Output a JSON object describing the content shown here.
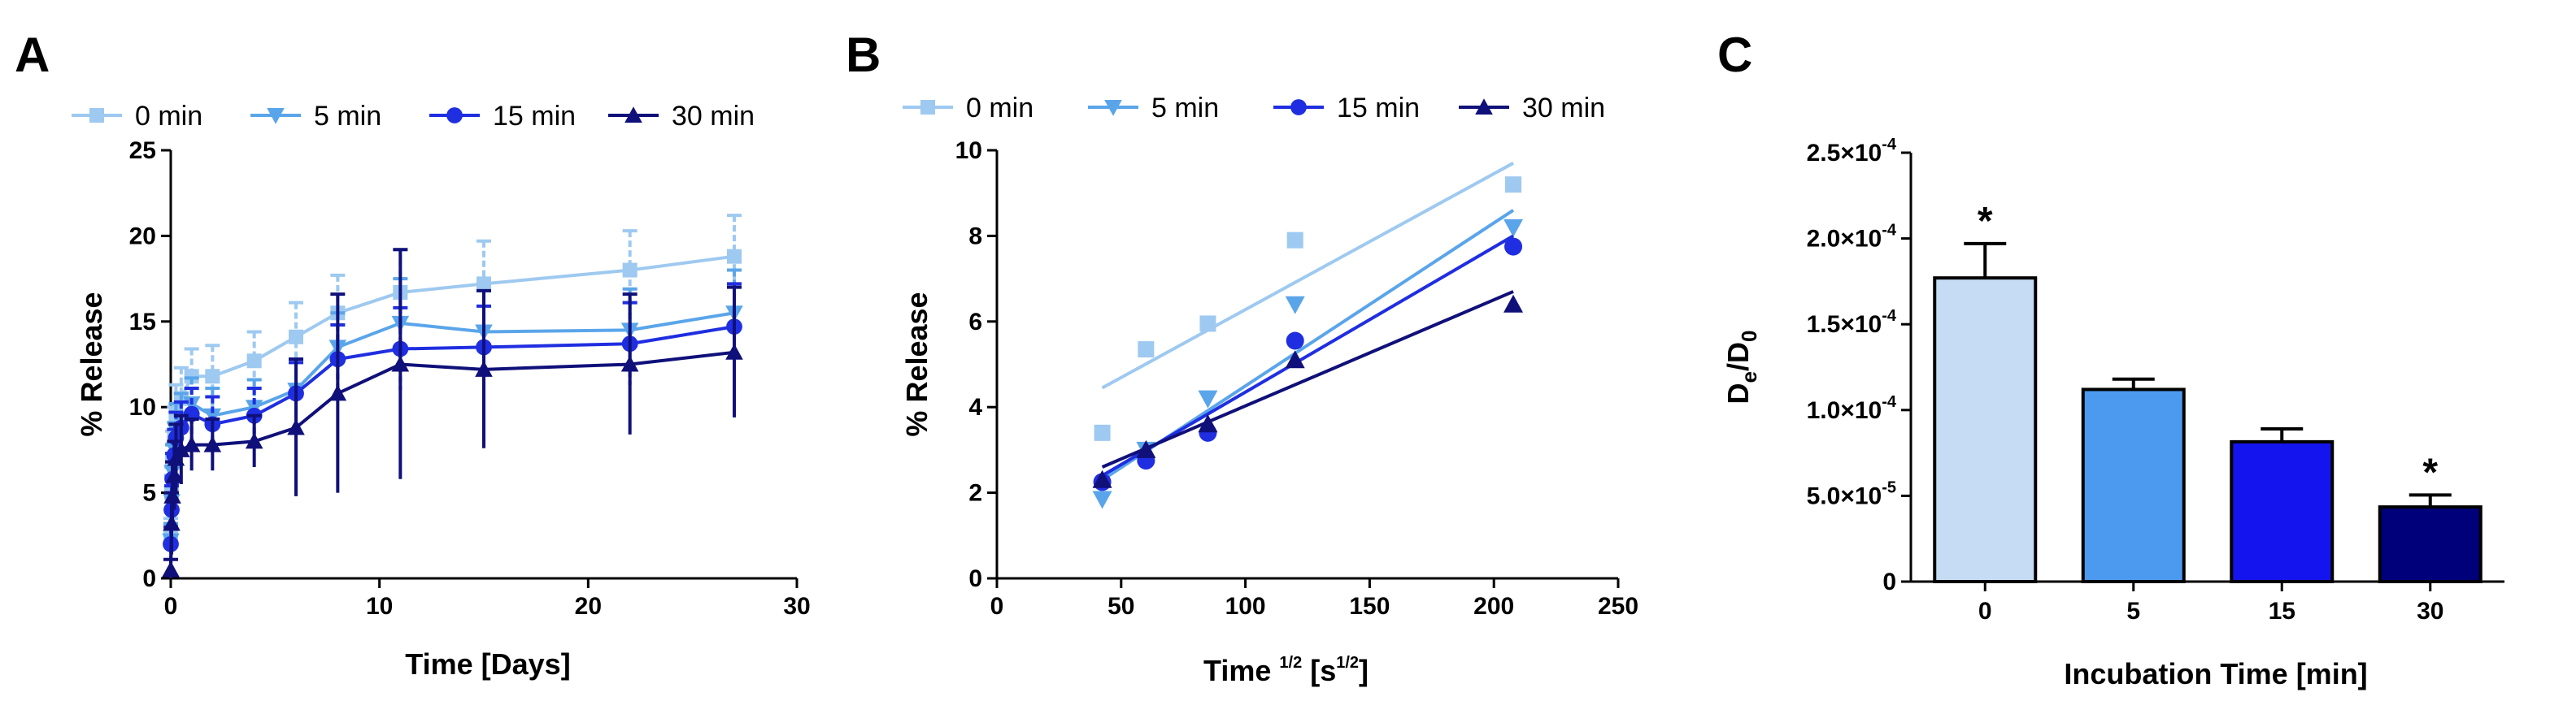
{
  "chart_data": [
    {
      "panel": "A",
      "type": "line",
      "xlabel": "Time [Days]",
      "ylabel": "% Release",
      "xlim": [
        0,
        30
      ],
      "ylim": [
        0,
        25
      ],
      "xticks": [
        0,
        10,
        20,
        30
      ],
      "yticks": [
        0,
        5,
        10,
        15,
        20,
        25
      ],
      "legend": "top",
      "x": [
        0,
        0.04,
        0.08,
        0.17,
        0.25,
        0.5,
        1,
        2,
        4,
        6,
        8,
        11,
        15,
        22,
        27
      ],
      "series": [
        {
          "name": "0 min",
          "color": "#9ec9f0",
          "marker": "square",
          "values": [
            2.5,
            5.0,
            6.8,
            8.2,
            9.5,
            10.5,
            11.8,
            11.8,
            12.7,
            14.1,
            15.5,
            16.7,
            17.2,
            18.0,
            18.8
          ],
          "err": [
            1.0,
            1.5,
            1.8,
            1.8,
            1.8,
            1.8,
            1.6,
            1.8,
            1.7,
            2.0,
            2.2,
            2.5,
            2.5,
            2.3,
            2.4
          ]
        },
        {
          "name": "5 min",
          "color": "#5aa5ea",
          "marker": "triangle-down",
          "values": [
            2.2,
            4.5,
            6.2,
            7.5,
            8.6,
            9.3,
            10.2,
            9.5,
            10.0,
            11.0,
            13.5,
            14.9,
            14.4,
            14.5,
            15.5
          ],
          "err": [
            1.0,
            1.5,
            1.6,
            1.6,
            1.6,
            1.5,
            1.5,
            1.6,
            1.6,
            1.8,
            2.0,
            2.6,
            2.4,
            2.4,
            2.5
          ]
        },
        {
          "name": "15 min",
          "color": "#1f2ee0",
          "marker": "circle",
          "values": [
            2.0,
            4.0,
            5.8,
            7.2,
            8.2,
            8.8,
            9.6,
            9.0,
            9.5,
            10.8,
            12.8,
            13.4,
            13.5,
            13.7,
            14.7
          ],
          "err": [
            1.0,
            1.4,
            1.5,
            1.5,
            1.5,
            1.5,
            1.5,
            1.6,
            1.6,
            1.8,
            2.0,
            2.4,
            2.4,
            2.4,
            2.5
          ]
        },
        {
          "name": "30 min",
          "color": "#10107a",
          "marker": "triangle-up",
          "values": [
            0.5,
            3.2,
            4.8,
            6.0,
            7.0,
            7.5,
            7.8,
            7.8,
            8.0,
            8.8,
            10.8,
            12.5,
            12.2,
            12.5,
            13.2
          ],
          "err": [
            0.6,
            1.8,
            2.0,
            2.0,
            2.0,
            2.0,
            1.5,
            1.5,
            1.5,
            4.0,
            5.8,
            6.7,
            4.6,
            4.1,
            3.8
          ]
        }
      ]
    },
    {
      "panel": "B",
      "type": "scatter",
      "xlabel": "Time",
      "xlabel_sup": "1/2",
      "xlabel_unit": "[s",
      "xlabel_unit_sup": "1/2",
      "xlabel_close": "]",
      "ylabel": "% Release",
      "xlim": [
        0,
        250
      ],
      "ylim": [
        0,
        10
      ],
      "xticks": [
        0,
        50,
        100,
        150,
        200,
        250
      ],
      "yticks": [
        0,
        2,
        4,
        6,
        8,
        10
      ],
      "legend": "top",
      "x": [
        42.4,
        60,
        84.9,
        120,
        207.8
      ],
      "series": [
        {
          "name": "0 min",
          "color": "#9ec9f0",
          "marker": "square",
          "values": [
            3.4,
            5.35,
            5.95,
            7.9,
            9.2
          ],
          "fit": [
            4.45,
            9.7
          ]
        },
        {
          "name": "5 min",
          "color": "#5aa5ea",
          "marker": "triangle-down",
          "values": [
            1.85,
            3.0,
            4.2,
            6.4,
            8.2
          ],
          "fit": [
            2.3,
            8.6
          ]
        },
        {
          "name": "15 min",
          "color": "#1f2ee0",
          "marker": "circle",
          "values": [
            2.25,
            2.75,
            3.4,
            5.55,
            7.75
          ],
          "fit": [
            2.4,
            8.0
          ]
        },
        {
          "name": "30 min",
          "color": "#10107a",
          "marker": "triangle-up",
          "values": [
            2.3,
            3.0,
            3.6,
            5.1,
            6.4
          ],
          "fit": [
            2.6,
            6.7
          ]
        }
      ]
    },
    {
      "panel": "C",
      "type": "bar",
      "xlabel": "Incubation Time [min]",
      "ylabel_main": "D",
      "ylabel_sub1": "e",
      "ylabel_slash": "/D",
      "ylabel_sub2": "0",
      "ylim": [
        0,
        0.00025
      ],
      "categories": [
        "0",
        "5",
        "15",
        "30"
      ],
      "values": [
        0.000177,
        0.000112,
        8.15e-05,
        4.35e-05
      ],
      "err": [
        2e-05,
        6e-06,
        7.5e-06,
        7e-06
      ],
      "colors": [
        "#c6dcf5",
        "#4c9af0",
        "#1414ee",
        "#00007a"
      ],
      "annotations": [
        "*",
        "",
        "",
        "*"
      ],
      "yticks": [
        {
          "value": 0,
          "mant": "0",
          "exp": ""
        },
        {
          "value": 5e-05,
          "mant": "5.0×10",
          "exp": "-5"
        },
        {
          "value": 0.0001,
          "mant": "1.0×10",
          "exp": "-4"
        },
        {
          "value": 0.00015,
          "mant": "1.5×10",
          "exp": "-4"
        },
        {
          "value": 0.0002,
          "mant": "2.0×10",
          "exp": "-4"
        },
        {
          "value": 0.00025,
          "mant": "2.5×10",
          "exp": "-4"
        }
      ]
    }
  ]
}
